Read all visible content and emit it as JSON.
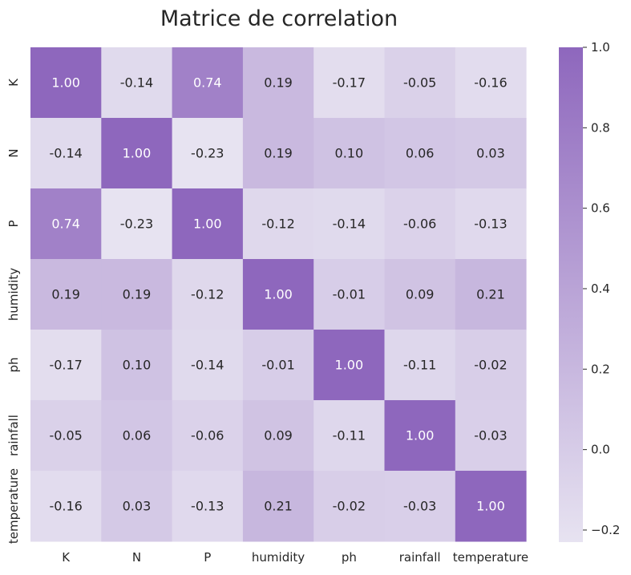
{
  "chart_data": {
    "type": "heatmap",
    "title": "Matrice de correlation",
    "xlabel": "",
    "ylabel": "",
    "x_labels": [
      "K",
      "N",
      "P",
      "humidity",
      "ph",
      "rainfall",
      "temperature"
    ],
    "y_labels": [
      "K",
      "N",
      "P",
      "humidity",
      "ph",
      "rainfall",
      "temperature"
    ],
    "values": [
      [
        1.0,
        -0.14,
        0.74,
        0.19,
        -0.17,
        -0.05,
        -0.16
      ],
      [
        -0.14,
        1.0,
        -0.23,
        0.19,
        0.1,
        0.06,
        0.03
      ],
      [
        0.74,
        -0.23,
        1.0,
        -0.12,
        -0.14,
        -0.06,
        -0.13
      ],
      [
        0.19,
        0.19,
        -0.12,
        1.0,
        -0.01,
        0.09,
        0.21
      ],
      [
        -0.17,
        0.1,
        -0.14,
        -0.01,
        1.0,
        -0.11,
        -0.02
      ],
      [
        -0.05,
        0.06,
        -0.06,
        0.09,
        -0.11,
        1.0,
        -0.03
      ],
      [
        -0.16,
        0.03,
        -0.13,
        0.21,
        -0.02,
        -0.03,
        1.0
      ]
    ],
    "value_labels": [
      [
        "1.00",
        "-0.14",
        "0.74",
        "0.19",
        "-0.17",
        "-0.05",
        "-0.16"
      ],
      [
        "-0.14",
        "1.00",
        "-0.23",
        "0.19",
        "0.10",
        "0.06",
        "0.03"
      ],
      [
        "0.74",
        "-0.23",
        "1.00",
        "-0.12",
        "-0.14",
        "-0.06",
        "-0.13"
      ],
      [
        "0.19",
        "0.19",
        "-0.12",
        "1.00",
        "-0.01",
        "0.09",
        "0.21"
      ],
      [
        "-0.17",
        "0.10",
        "-0.14",
        "-0.01",
        "1.00",
        "-0.11",
        "-0.02"
      ],
      [
        "-0.05",
        "0.06",
        "-0.06",
        "0.09",
        "-0.11",
        "1.00",
        "-0.03"
      ],
      [
        "-0.16",
        "0.03",
        "-0.13",
        "0.21",
        "-0.02",
        "-0.03",
        "1.00"
      ]
    ],
    "vmin": -0.23,
    "vmax": 1.0,
    "colormap": {
      "low": "#e7e3f1",
      "high": "#8e67bd"
    },
    "colorbar": {
      "ticks": [
        -0.2,
        0.0,
        0.2,
        0.4,
        0.6,
        0.8,
        1.0
      ],
      "tick_labels": [
        "−0.2",
        "0.0",
        "0.2",
        "0.4",
        "0.6",
        "0.8",
        "1.0"
      ]
    },
    "text_colors": {
      "dark": "#262626",
      "light": "#ffffff"
    }
  }
}
